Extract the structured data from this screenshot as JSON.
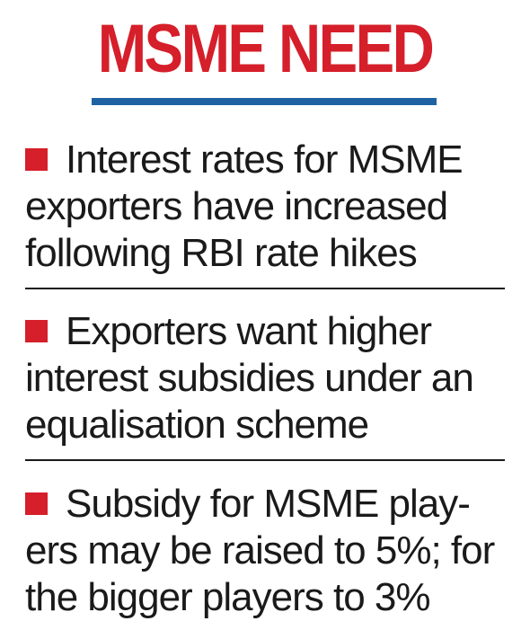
{
  "headline": "MSME NEED",
  "colors": {
    "headline_red": "#d51f2a",
    "rule_blue": "#1f62a4",
    "bullet_red": "#d51f2a",
    "text": "#1a1a1a"
  },
  "bullets": [
    {
      "lines": [
        "Interest rates for MSME",
        "exporters have increased",
        "following RBI rate hikes"
      ]
    },
    {
      "lines": [
        "Exporters want higher",
        "interest subsidies under an",
        "equalisation scheme"
      ]
    },
    {
      "lines": [
        "Subsidy for MSME play-",
        "ers may be raised to 5%; for",
        "the bigger players to 3%"
      ]
    }
  ]
}
